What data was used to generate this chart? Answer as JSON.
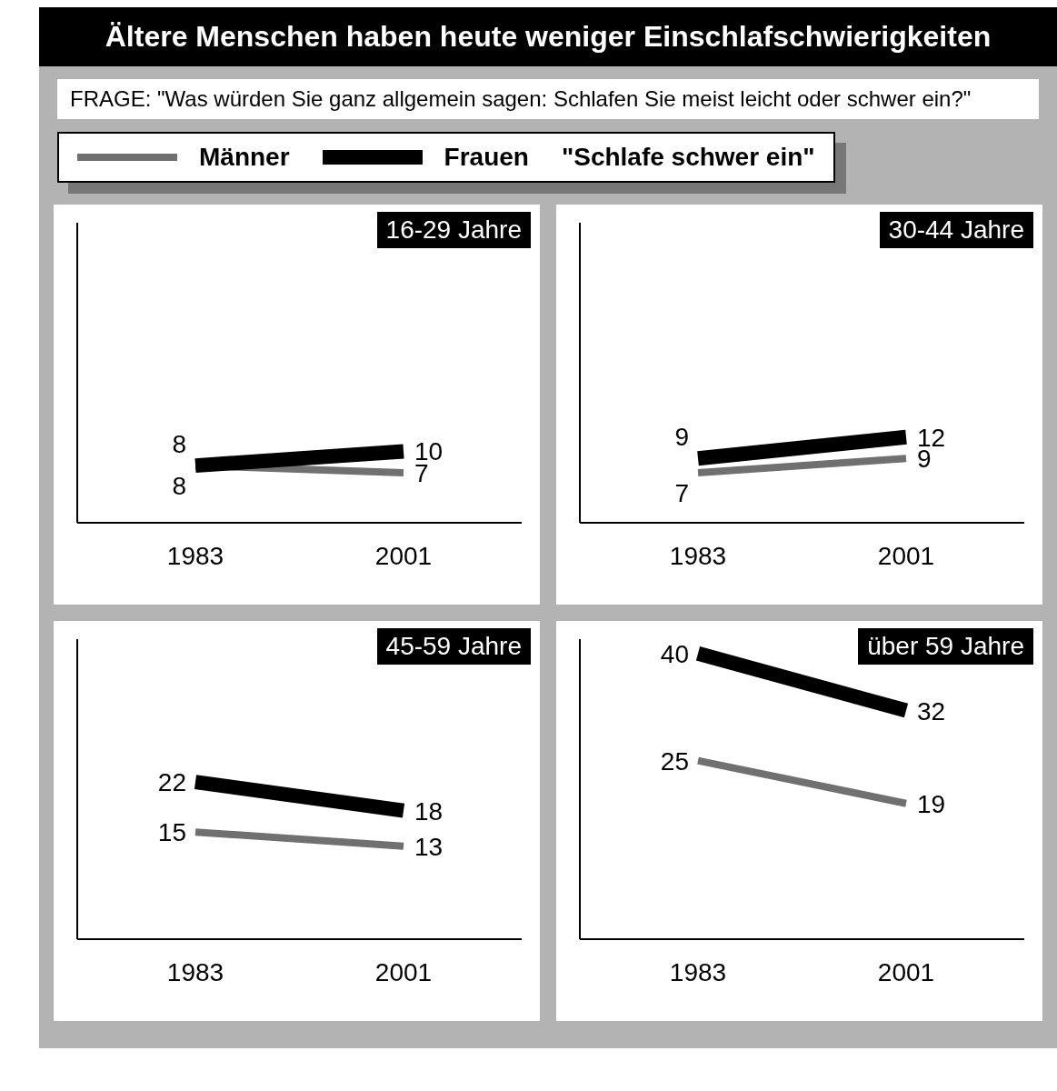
{
  "chart_data": [
    {
      "type": "line",
      "title": "16-29 Jahre",
      "annotations": [
        "Ältere Menschen haben heute weniger Einschlafschwierigkeiten",
        "FRAGE: \"Was würden Sie ganz allgemein sagen: Schlafen Sie meist leicht oder schwer ein?\""
      ],
      "legend": "top left",
      "legend_title": "\"Schlafe schwer ein\"",
      "categories": [
        "1983",
        "2001"
      ],
      "ylim": [
        0,
        42
      ],
      "tick_labels": "x",
      "data_labels": true,
      "marker": "none",
      "line_style": "solid",
      "series": [
        {
          "name": "Männer",
          "color": "#707070",
          "values": [
            8,
            7
          ]
        },
        {
          "name": "Frauen",
          "color": "#000000",
          "values": [
            8,
            10
          ]
        }
      ]
    },
    {
      "type": "line",
      "title": "30-44 Jahre",
      "categories": [
        "1983",
        "2001"
      ],
      "ylim": [
        0,
        42
      ],
      "tick_labels": "x",
      "data_labels": true,
      "marker": "none",
      "line_style": "solid",
      "series": [
        {
          "color": "#707070",
          "values": [
            7,
            9
          ]
        },
        {
          "color": "#000000",
          "values": [
            9,
            12
          ]
        }
      ]
    },
    {
      "type": "line",
      "title": "45-59 Jahre",
      "categories": [
        "1983",
        "2001"
      ],
      "ylim": [
        0,
        42
      ],
      "tick_labels": "x",
      "data_labels": true,
      "marker": "none",
      "line_style": "solid",
      "series": [
        {
          "color": "#707070",
          "values": [
            15,
            13
          ]
        },
        {
          "color": "#000000",
          "values": [
            22,
            18
          ]
        }
      ]
    },
    {
      "type": "line",
      "title": "über 59 Jahre",
      "categories": [
        "1983",
        "2001"
      ],
      "ylim": [
        0,
        42
      ],
      "tick_labels": "x",
      "data_labels": true,
      "marker": "none",
      "line_style": "solid",
      "series": [
        {
          "color": "#707070",
          "values": [
            25,
            19
          ]
        },
        {
          "color": "#000000",
          "values": [
            40,
            32
          ]
        }
      ]
    }
  ]
}
